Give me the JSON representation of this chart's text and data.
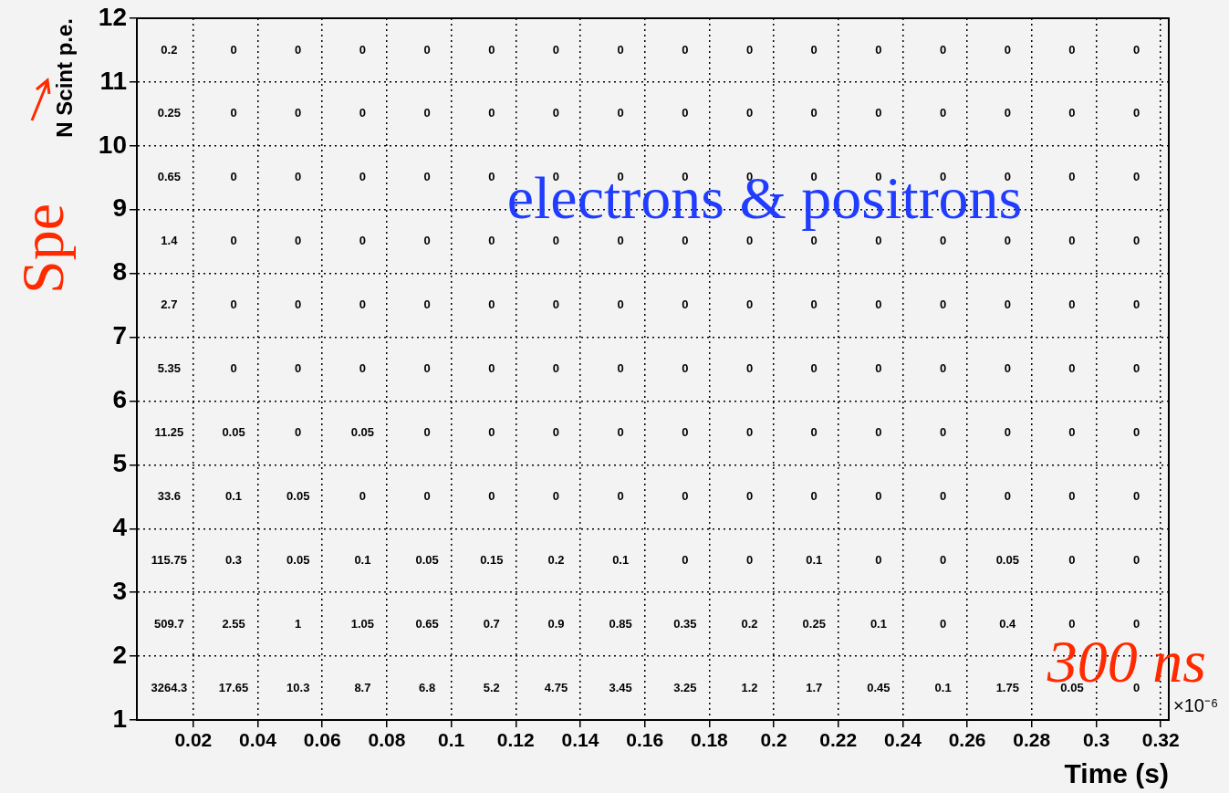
{
  "chart_data": {
    "type": "heatmap",
    "xlabel": "Time (s)",
    "ylabel": "N Scint p.e.",
    "annotations": [
      "electrons & positrons",
      "300 ns",
      "Spe",
      "×10⁻⁶"
    ],
    "x": [
      0.0125,
      0.0325,
      0.0525,
      0.0725,
      0.0925,
      0.1125,
      0.1325,
      0.1525,
      0.1725,
      0.1925,
      0.2125,
      0.2325,
      0.2525,
      0.2725,
      0.2925,
      0.3125
    ],
    "y": [
      11.5,
      10.5,
      9.5,
      8.5,
      7.5,
      6.5,
      5.5,
      4.5,
      3.5,
      2.5,
      1.5
    ],
    "cells": [
      [
        0.2,
        0,
        0,
        0,
        0,
        0,
        0,
        0,
        0,
        0,
        0,
        0,
        0,
        0,
        0,
        0
      ],
      [
        0.25,
        0,
        0,
        0,
        0,
        0,
        0,
        0,
        0,
        0,
        0,
        0,
        0,
        0,
        0,
        0
      ],
      [
        0.65,
        0,
        0,
        0,
        0,
        0,
        0,
        0,
        0,
        0,
        0,
        0,
        0,
        0,
        0,
        0
      ],
      [
        1.4,
        0,
        0,
        0,
        0,
        0,
        0,
        0,
        0,
        0,
        0,
        0,
        0,
        0,
        0,
        0
      ],
      [
        2.7,
        0,
        0,
        0,
        0,
        0,
        0,
        0,
        0,
        0,
        0,
        0,
        0,
        0,
        0,
        0
      ],
      [
        5.35,
        0,
        0,
        0,
        0,
        0,
        0,
        0,
        0,
        0,
        0,
        0,
        0,
        0,
        0,
        0
      ],
      [
        11.25,
        0.05,
        0,
        0.05,
        0,
        0,
        0,
        0,
        0,
        0,
        0,
        0,
        0,
        0,
        0,
        0
      ],
      [
        33.6,
        0.1,
        0.05,
        0,
        0,
        0,
        0,
        0,
        0,
        0,
        0,
        0,
        0,
        0,
        0,
        0
      ],
      [
        115.75,
        0.3,
        0.05,
        0.1,
        0.05,
        0.15,
        0.2,
        0.1,
        0,
        0,
        0.1,
        0,
        0,
        0.05,
        0,
        0
      ],
      [
        509.7,
        2.55,
        1,
        1.05,
        0.65,
        0.7,
        0.9,
        0.85,
        0.35,
        0.2,
        0.25,
        0.1,
        0,
        0.4,
        0,
        0
      ],
      [
        3264.3,
        17.65,
        10.3,
        8.7,
        6.8,
        5.2,
        4.75,
        3.45,
        3.25,
        1.2,
        1.7,
        0.45,
        0.1,
        1.75,
        0.05,
        0
      ]
    ],
    "data_labels": true,
    "xlim": [
      0.0025,
      0.3225
    ],
    "xticks": [
      0.02,
      0.04,
      0.06,
      0.08,
      0.1,
      0.12,
      0.14,
      0.16,
      0.18,
      0.2,
      0.22,
      0.24,
      0.26,
      0.28,
      0.3,
      0.32
    ],
    "ylim": [
      1,
      12
    ],
    "yticks": [
      1,
      2,
      3,
      4,
      5,
      6,
      7,
      8,
      9,
      10,
      11,
      12
    ],
    "grid": true
  }
}
